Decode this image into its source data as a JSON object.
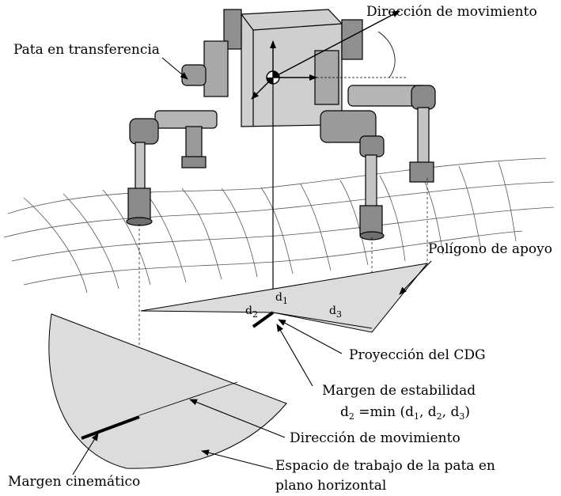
{
  "labels": {
    "move_dir_top": "Dirección de movimiento",
    "swing_leg": "Pata en transferencia",
    "support_polygon": "Polígono de apoyo",
    "d1": "d",
    "d2": "d",
    "d3": "d",
    "d1_sub": "1",
    "d2_sub": "2",
    "d3_sub": "3",
    "cog_projection": "Proyección del CDG",
    "stability_margin": "Margen de estabilidad",
    "formula_lhs": "d",
    "formula_lhs_sub": "2",
    "formula_eq": " =min (d",
    "formula_a_sub": "1",
    "formula_comma1": ", d",
    "formula_b_sub": "2",
    "formula_comma2": ", d",
    "formula_c_sub": "3",
    "formula_close": ")",
    "move_dir_bottom": "Dirección de movimiento",
    "workspace_line1": "Espacio de trabajo de la pata en",
    "workspace_line2": "plano horizontal",
    "kinematic_margin": "Margen cinemático"
  },
  "colors": {
    "ink": "#000000",
    "fill_gray": "#dcdcdc",
    "robot_gray": "#9a9a9a"
  }
}
